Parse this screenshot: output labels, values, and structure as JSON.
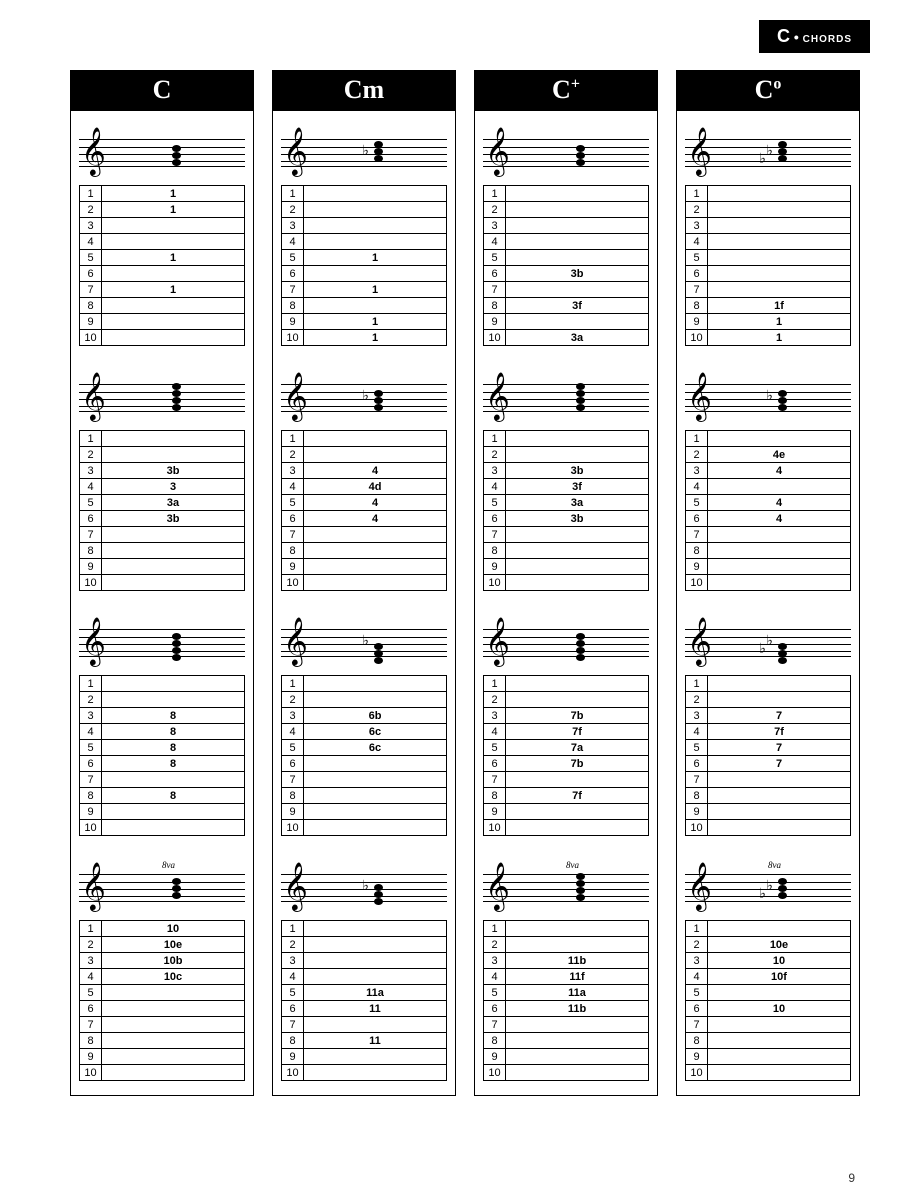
{
  "page": {
    "header_big": "C",
    "header_bullet": "•",
    "header_small": "CHORDS",
    "page_number": "9"
  },
  "row_numbers": [
    "1",
    "2",
    "3",
    "4",
    "5",
    "6",
    "7",
    "8",
    "9",
    "10"
  ],
  "columns": [
    {
      "title_html": "C",
      "voicings": [
        {
          "ottava": "",
          "accidentals": [],
          "note_offsets": [
            0,
            7,
            14
          ],
          "rows": [
            "1",
            "1",
            "",
            "",
            "1",
            "",
            "1",
            "",
            "",
            ""
          ]
        },
        {
          "ottava": "",
          "accidentals": [],
          "note_offsets": [
            0,
            7,
            14,
            21
          ],
          "rows": [
            "",
            "",
            "3b",
            "3",
            "3a",
            "3b",
            "",
            "",
            "",
            ""
          ]
        },
        {
          "ottava": "",
          "accidentals": [],
          "note_offsets": [
            -5,
            2,
            9,
            16
          ],
          "rows": [
            "",
            "",
            "8",
            "8",
            "8",
            "8",
            "",
            "8",
            "",
            ""
          ]
        },
        {
          "ottava": "8va",
          "accidentals": [],
          "note_offsets": [
            2,
            9,
            16
          ],
          "rows": [
            "10",
            "10e",
            "10b",
            "10c",
            "",
            "",
            "",
            "",
            "",
            ""
          ]
        }
      ]
    },
    {
      "title_html": "Cm",
      "voicings": [
        {
          "ottava": "",
          "accidentals": [
            "b"
          ],
          "note_offsets": [
            4,
            11,
            18
          ],
          "rows": [
            "",
            "",
            "",
            "",
            "1",
            "",
            "1",
            "",
            "1",
            "1"
          ]
        },
        {
          "ottava": "",
          "accidentals": [
            "b"
          ],
          "note_offsets": [
            0,
            7,
            14
          ],
          "rows": [
            "",
            "",
            "4",
            "4d",
            "4",
            "4",
            "",
            "",
            "",
            ""
          ]
        },
        {
          "ottava": "",
          "accidentals": [
            "b"
          ],
          "note_offsets": [
            -8,
            -1,
            6
          ],
          "rows": [
            "",
            "",
            "6b",
            "6c",
            "6c",
            "",
            "",
            "",
            "",
            ""
          ]
        },
        {
          "ottava": "",
          "accidentals": [
            "b"
          ],
          "note_offsets": [
            -4,
            3,
            10
          ],
          "rows": [
            "",
            "",
            "",
            "",
            "11a",
            "11",
            "",
            "11",
            "",
            ""
          ]
        }
      ]
    },
    {
      "title_html": "C<sup>+</sup>",
      "voicings": [
        {
          "ottava": "",
          "accidentals": [],
          "note_offsets": [
            0,
            7,
            14
          ],
          "rows": [
            "",
            "",
            "",
            "",
            "",
            "3b",
            "",
            "3f",
            "",
            "3a"
          ]
        },
        {
          "ottava": "",
          "accidentals": [],
          "note_offsets": [
            0,
            7,
            14,
            21
          ],
          "rows": [
            "",
            "",
            "3b",
            "3f",
            "3a",
            "3b",
            "",
            "",
            "",
            ""
          ]
        },
        {
          "ottava": "",
          "accidentals": [],
          "note_offsets": [
            -5,
            2,
            9,
            16
          ],
          "rows": [
            "",
            "",
            "7b",
            "7f",
            "7a",
            "7b",
            "",
            "7f",
            "",
            ""
          ]
        },
        {
          "ottava": "8va",
          "accidentals": [],
          "note_offsets": [
            0,
            7,
            14,
            21
          ],
          "rows": [
            "",
            "",
            "11b",
            "11f",
            "11a",
            "11b",
            "",
            "",
            "",
            ""
          ]
        }
      ]
    },
    {
      "title_html": "C<sup>o</sup>",
      "voicings": [
        {
          "ottava": "",
          "accidentals": [
            "b",
            "b"
          ],
          "note_offsets": [
            4,
            11,
            18
          ],
          "rows": [
            "",
            "",
            "",
            "",
            "",
            "",
            "",
            "1f",
            "1",
            "1"
          ]
        },
        {
          "ottava": "",
          "accidentals": [
            "b"
          ],
          "note_offsets": [
            0,
            7,
            14
          ],
          "rows": [
            "",
            "4e",
            "4",
            "",
            "4",
            "4",
            "",
            "",
            "",
            ""
          ]
        },
        {
          "ottava": "",
          "accidentals": [
            "b",
            "b"
          ],
          "note_offsets": [
            -8,
            -1,
            6
          ],
          "rows": [
            "",
            "",
            "7",
            "7f",
            "7",
            "7",
            "",
            "",
            "",
            ""
          ]
        },
        {
          "ottava": "8va",
          "accidentals": [
            "b",
            "b"
          ],
          "note_offsets": [
            2,
            9,
            16
          ],
          "rows": [
            "",
            "10e",
            "10",
            "10f",
            "",
            "10",
            "",
            "",
            "",
            ""
          ]
        }
      ]
    }
  ]
}
